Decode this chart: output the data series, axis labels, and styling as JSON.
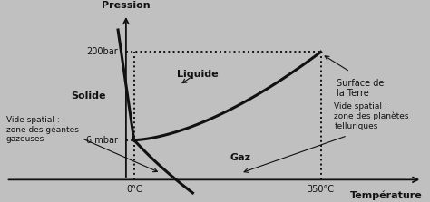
{
  "background_color": "#c0c0c0",
  "plot_bg_color": "#c8c8c8",
  "xlabel": "Température",
  "ylabel": "Pression",
  "label_solide": "Solide",
  "label_liquide": "Liquide",
  "label_gaz": "Gaz",
  "label_surface": "Surface de\nla Terre",
  "label_vide_left": "Vide spatial :\nzone des géantes\ngazeuses",
  "label_vide_right": "Vide spatial :\nzone des planètes\ntelluriques",
  "line_color": "#111111",
  "text_color": "#111111",
  "tick_200bar": "200bar",
  "tick_6mbar": "6 mbar",
  "tick_0c": "0°C",
  "tick_350c": "350°C",
  "xlim": [
    -2.5,
    5.5
  ],
  "ylim": [
    -0.8,
    3.5
  ],
  "yaxis_x": -0.15,
  "xaxis_y": -0.4,
  "tp_x": 0.0,
  "tp_y": 0.5,
  "cp_x": 3.5,
  "cp_y": 2.5
}
